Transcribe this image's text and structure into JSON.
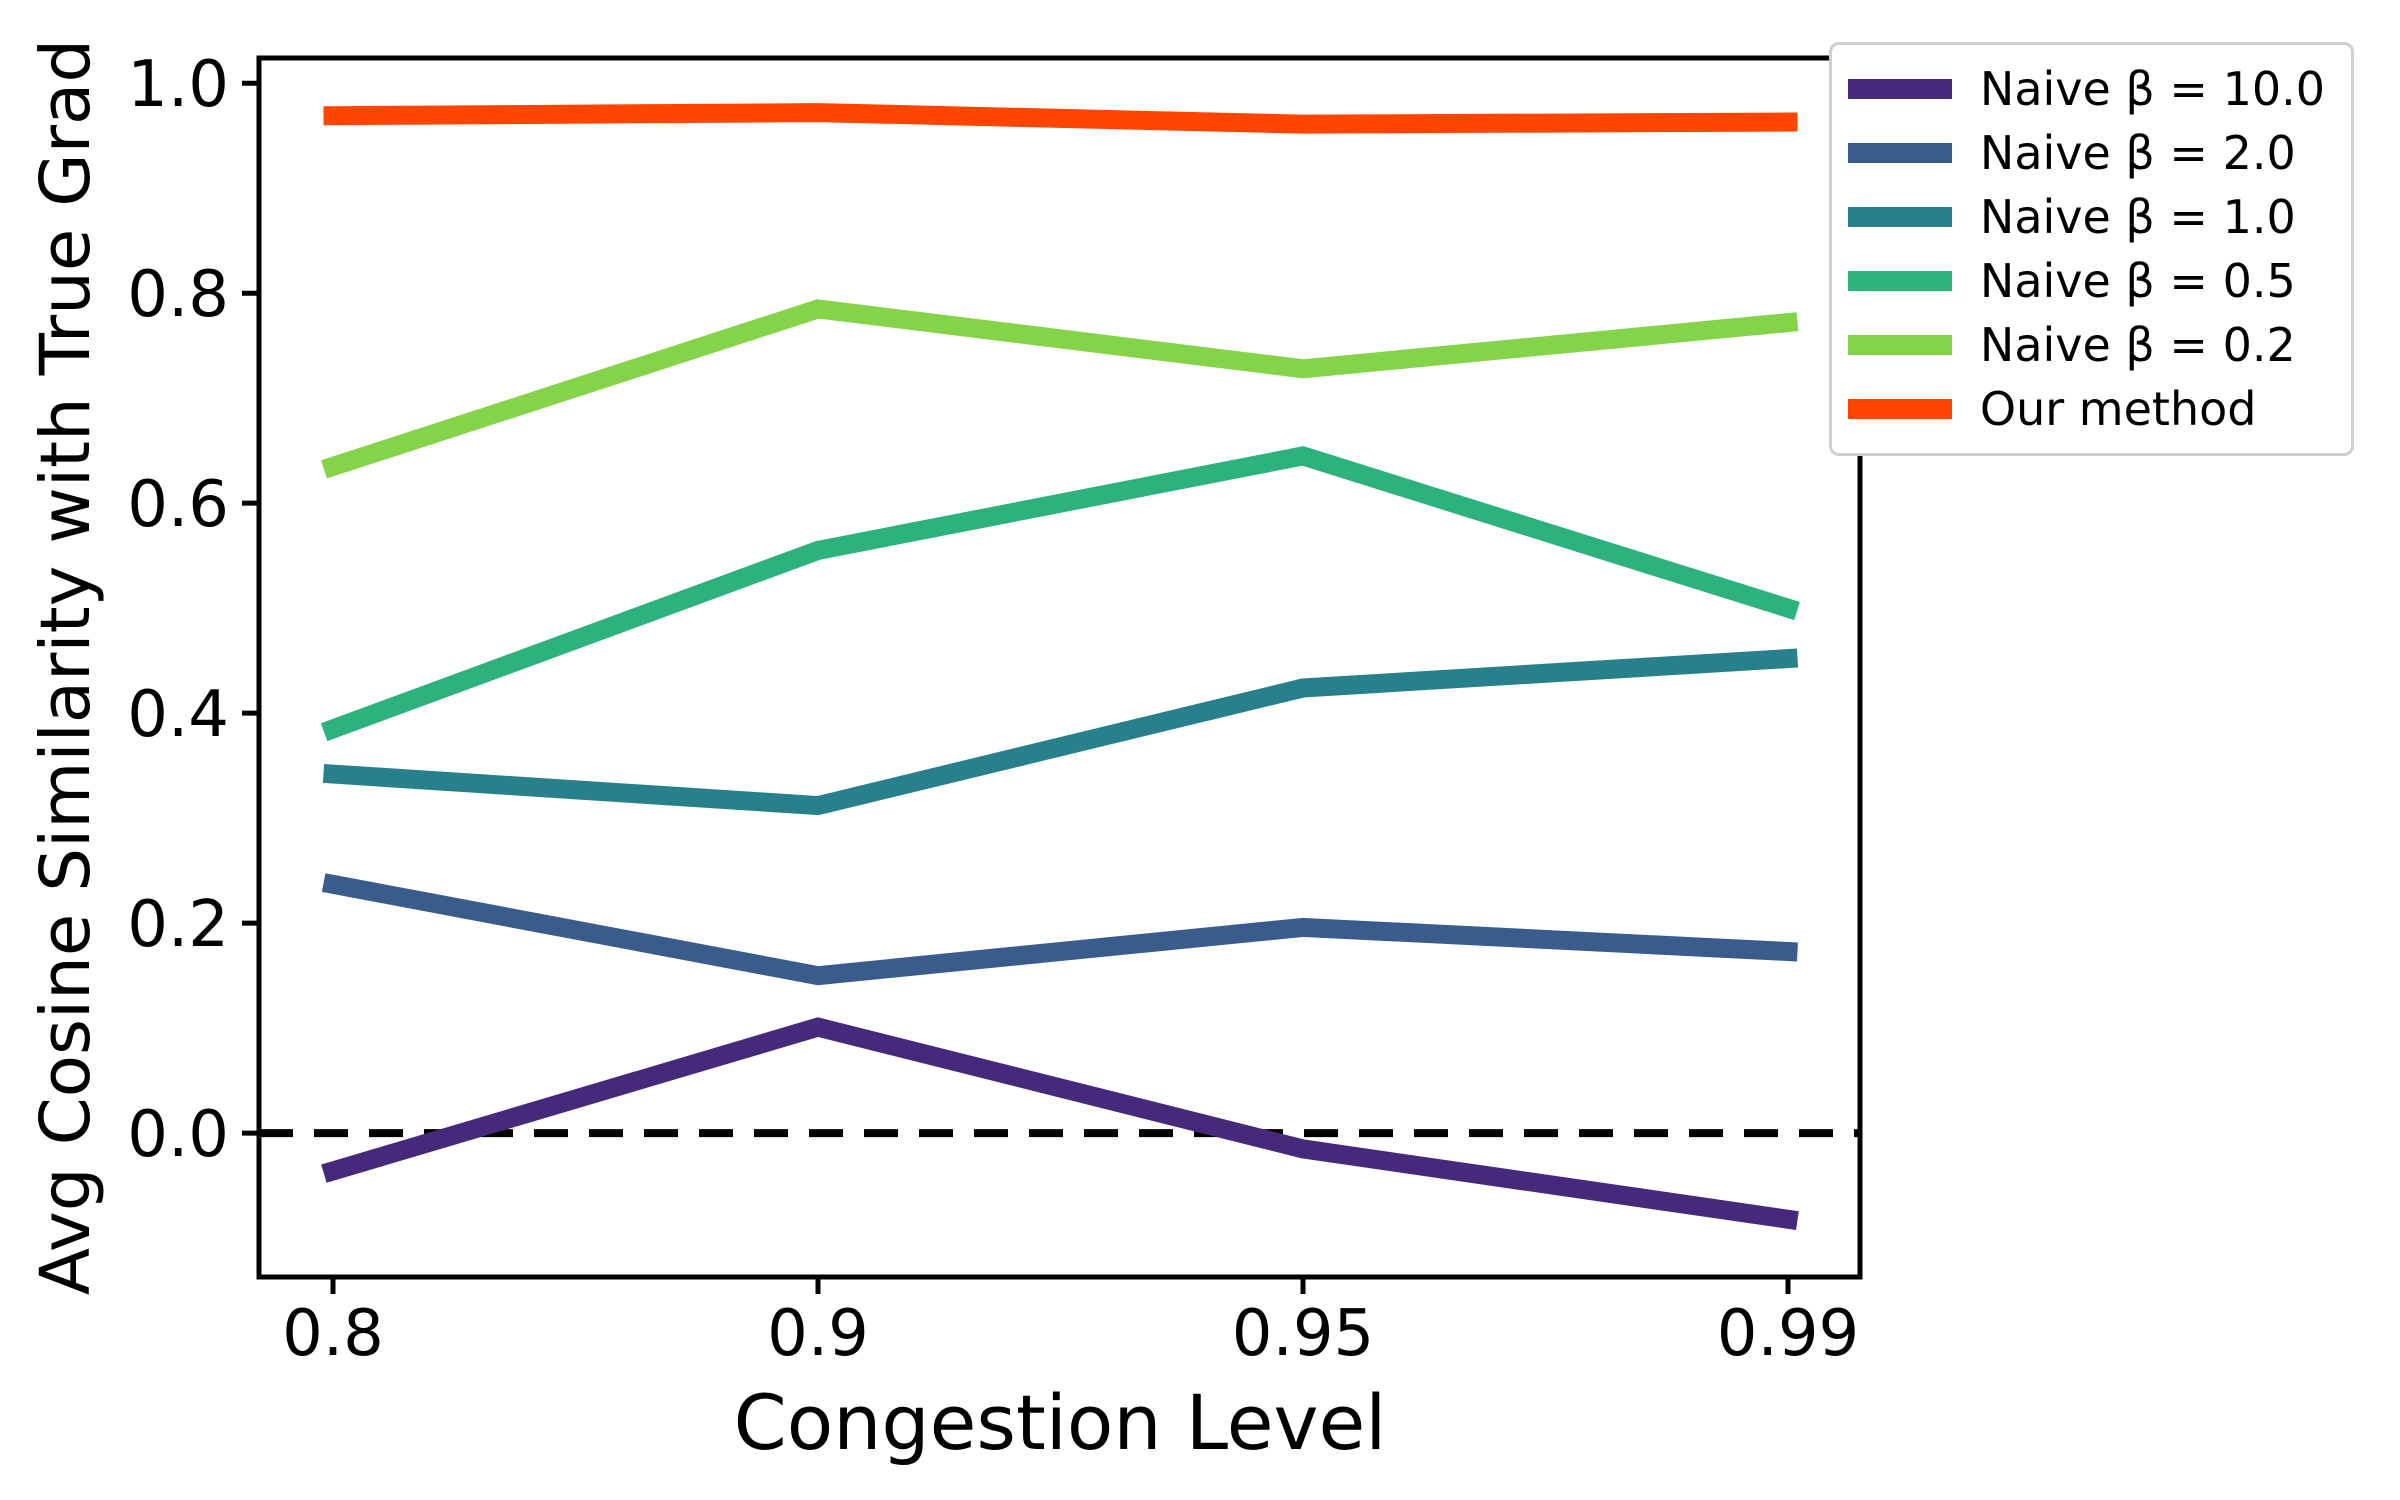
{
  "figure": {
    "background": "#ffffff"
  },
  "chart_data": {
    "type": "line",
    "title": "",
    "xlabel": "Congestion Level",
    "ylabel": "Avg Cosine Similarity with True Grad",
    "categories": [
      0.8,
      0.9,
      0.95,
      0.99
    ],
    "x_tick_labels": [
      "0.8",
      "0.9",
      "0.95",
      "0.99"
    ],
    "x_spacing": "categorical-even",
    "y_ticks": [
      0.0,
      0.2,
      0.4,
      0.6,
      0.8,
      1.0
    ],
    "y_tick_labels": [
      "0.0",
      "0.2",
      "0.4",
      "0.6",
      "0.8",
      "1.0"
    ],
    "ylim": [
      -0.137,
      1.024
    ],
    "grid": false,
    "zero_line": {
      "y": 0.0,
      "style": "dashed",
      "color": "#000000"
    },
    "legend_position": "outside-upper-right",
    "series": [
      {
        "name": "Naive β = 10.0",
        "color": "#46297b",
        "values": [
          -0.036,
          0.101,
          -0.015,
          -0.082
        ]
      },
      {
        "name": "Naive β = 2.0",
        "color": "#3a5c8c",
        "values": [
          0.237,
          0.15,
          0.196,
          0.173
        ]
      },
      {
        "name": "Naive β = 1.0",
        "color": "#28808c",
        "values": [
          0.342,
          0.312,
          0.424,
          0.452
        ]
      },
      {
        "name": "Naive β = 0.5",
        "color": "#2db27d",
        "values": [
          0.385,
          0.555,
          0.645,
          0.5
        ]
      },
      {
        "name": "Naive β = 0.2",
        "color": "#85d348",
        "values": [
          0.635,
          0.785,
          0.728,
          0.772
        ]
      },
      {
        "name": "Our method",
        "color": "#ff4500",
        "values": [
          0.969,
          0.972,
          0.961,
          0.963
        ]
      }
    ]
  }
}
